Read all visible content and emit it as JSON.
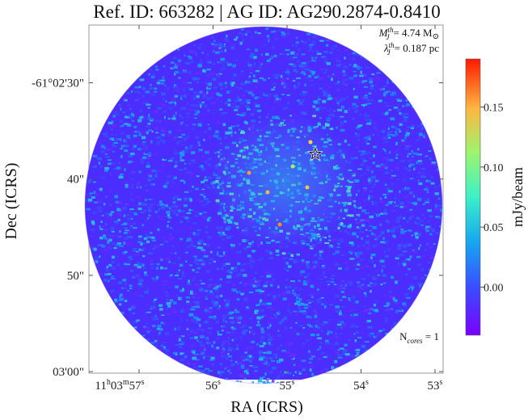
{
  "chart_data": {
    "type": "heatmap",
    "title": "Ref. ID: 663282 | AG ID: AG290.2874-0.8410",
    "xlabel": "RA (ICRS)",
    "ylabel": "Dec (ICRS)",
    "colorbar_label": "mJy/beam",
    "colormap": "rainbow",
    "colorbar_range": [
      -0.04,
      0.19
    ],
    "colorbar_ticks": [
      0.0,
      0.05,
      0.1,
      0.15
    ],
    "colorbar_tick_labels": [
      "0.00",
      "0.05",
      "0.10",
      "0.15"
    ],
    "x_ticks": [
      {
        "h": "11",
        "m": "03",
        "s": "57",
        "value_s": 57
      },
      {
        "s": "56",
        "value_s": 56
      },
      {
        "s": "55",
        "value_s": 55
      },
      {
        "s": "54",
        "value_s": 54
      },
      {
        "s": "53",
        "value_s": 53
      }
    ],
    "y_tick_labels": [
      "-61°02'30\"",
      "40\"",
      "50\"",
      "03'00\""
    ],
    "y_ticks_arcsec": [
      30,
      40,
      50,
      60
    ],
    "annotations": {
      "jeans_mass_label": "M",
      "jeans_mass_sub": "J",
      "jeans_mass_sup": "th",
      "jeans_mass_value": "= 4.74 M",
      "jeans_mass_unit_symbol": "⊙",
      "jeans_length_label": "λ",
      "jeans_length_sub": "J",
      "jeans_length_sup": "th",
      "jeans_length_value": "= 0.187 pc",
      "ncores_label": "N",
      "ncores_sub": "cores",
      "ncores_value": " = 1"
    },
    "core_markers": [
      {
        "ra_s": 54.62,
        "dec_arcsec": 37.4,
        "marker": "star"
      }
    ]
  },
  "colors": {
    "background_field": "#4b2dff",
    "axes_frame": "#9a9a9a"
  }
}
